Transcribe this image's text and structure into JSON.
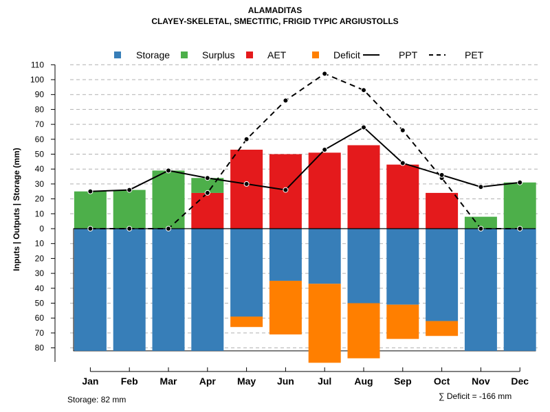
{
  "chart_data": {
    "type": "bar",
    "title": "ALAMADITAS",
    "subtitle": "CLAYEY-SKELETAL, SMECTITIC, FRIGID TYPIC ARGIUSTOLLS",
    "ylabel": "Inputs | Outputs | Storage    (mm)",
    "ylim": [
      -90,
      110
    ],
    "y_ticks": [
      110,
      100,
      90,
      80,
      70,
      60,
      50,
      40,
      30,
      20,
      10,
      0,
      -10,
      -20,
      -30,
      -40,
      -50,
      -60,
      -70,
      -80
    ],
    "y_tick_labels": [
      "110",
      "100",
      "90",
      "80",
      "70",
      "60",
      "50",
      "40",
      "30",
      "20",
      "10",
      "0",
      "10",
      "20",
      "30",
      "40",
      "50",
      "60",
      "70",
      "80"
    ],
    "categories": [
      "Jan",
      "Feb",
      "Mar",
      "Apr",
      "May",
      "Jun",
      "Jul",
      "Aug",
      "Sep",
      "Oct",
      "Nov",
      "Dec"
    ],
    "series": [
      {
        "name": "Storage",
        "color": "#377EB8",
        "values": [
          -82,
          -82,
          -82,
          -82,
          -59,
          -35,
          -37,
          -50,
          -51,
          -62,
          -82,
          -82
        ]
      },
      {
        "name": "Surplus",
        "color": "#4DAF4A",
        "values": [
          25,
          26,
          39,
          10,
          0,
          0,
          0,
          0,
          0,
          0,
          8,
          31
        ]
      },
      {
        "name": "AET",
        "color": "#E41A1C",
        "values": [
          0,
          0,
          0,
          24,
          53,
          50,
          51,
          56,
          43,
          24,
          0,
          0
        ]
      },
      {
        "name": "Deficit",
        "color": "#FF7F00",
        "values": [
          0,
          0,
          0,
          0,
          7,
          36,
          53,
          37,
          23,
          10,
          0,
          0
        ]
      },
      {
        "name": "PPT",
        "color": "#000000",
        "values": [
          25,
          26,
          39,
          34,
          30,
          26,
          53,
          68,
          44,
          36,
          28,
          31
        ]
      },
      {
        "name": "PET",
        "color": "#000000",
        "values": [
          0,
          0,
          0,
          24,
          60,
          86,
          104,
          93,
          66,
          34,
          0,
          0
        ]
      }
    ],
    "legend": [
      {
        "label": "Storage",
        "kind": "box",
        "color": "#377EB8"
      },
      {
        "label": "Surplus",
        "kind": "box",
        "color": "#4DAF4A"
      },
      {
        "label": "AET",
        "kind": "box",
        "color": "#E41A1C"
      },
      {
        "label": "Deficit",
        "kind": "box",
        "color": "#FF7F00"
      },
      {
        "label": "PPT",
        "kind": "solid"
      },
      {
        "label": "PET",
        "kind": "dashed"
      }
    ],
    "legend_position": "top",
    "grid": true
  },
  "footnotes": {
    "storage": "Storage: 82 mm",
    "deficit": "∑ Deficit = -166 mm"
  }
}
